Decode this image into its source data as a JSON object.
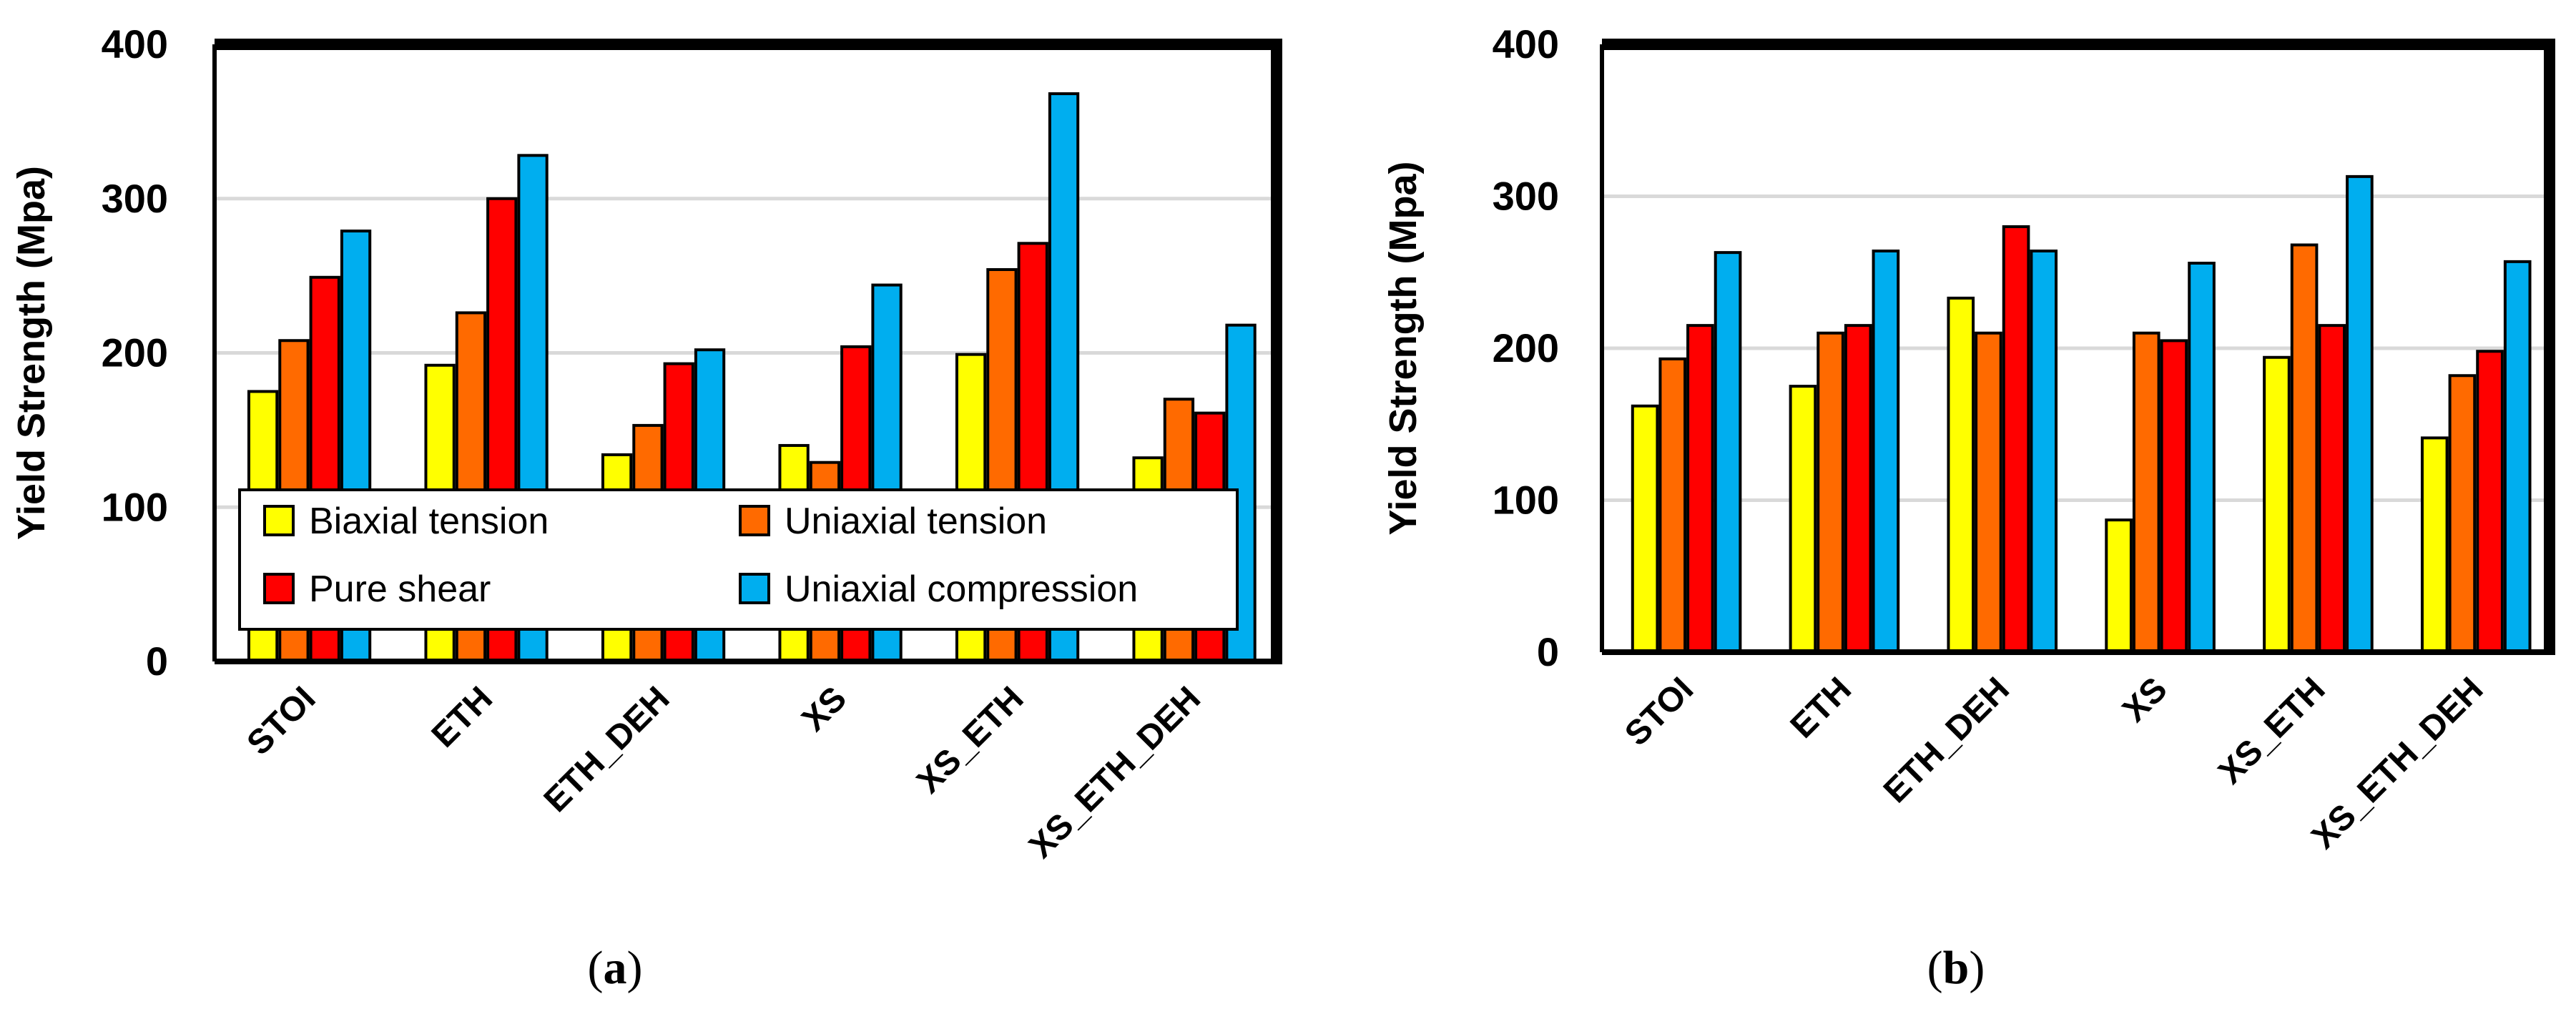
{
  "chart_data": [
    {
      "type": "bar",
      "caption_prefix": "(",
      "caption_letter": "a",
      "caption_suffix": ")",
      "ylabel": "Yield Strength (Mpa)",
      "xlabel": "",
      "ylim": [
        0,
        400
      ],
      "yticks": [
        "0",
        "100",
        "200",
        "300",
        "400"
      ],
      "grid": true,
      "legend": "inside-bottom",
      "categories": [
        "STOI",
        "ETH",
        "ETH_DEH",
        "XS",
        "XS_ETH",
        "XS_ETH_DEH"
      ],
      "series": [
        {
          "name": "Biaxial tension",
          "color": "#FFFF00",
          "values": [
            175,
            192,
            134,
            140,
            199,
            132
          ]
        },
        {
          "name": "Uniaxial tension",
          "color": "#FF6A00",
          "values": [
            208,
            226,
            153,
            129,
            254,
            170
          ]
        },
        {
          "name": "Pure shear",
          "color": "#FF0000",
          "values": [
            249,
            300,
            193,
            204,
            271,
            161
          ]
        },
        {
          "name": "Uniaxial compression",
          "color": "#00AEEF",
          "values": [
            279,
            328,
            202,
            244,
            368,
            218
          ]
        }
      ]
    },
    {
      "type": "bar",
      "caption_prefix": "(",
      "caption_letter": "b",
      "caption_suffix": ")",
      "ylabel": "Yield Strength (Mpa)",
      "xlabel": "",
      "ylim": [
        0,
        400
      ],
      "yticks": [
        "0",
        "100",
        "200",
        "300",
        "400"
      ],
      "grid": true,
      "legend": "none",
      "categories": [
        "STOI",
        "ETH",
        "ETH_DEH",
        "XS",
        "XS_ETH",
        "XS_ETH_DEH"
      ],
      "series": [
        {
          "name": "Biaxial tension",
          "color": "#FFFF00",
          "values": [
            162,
            175,
            233,
            87,
            194,
            141
          ]
        },
        {
          "name": "Uniaxial tension",
          "color": "#FF6A00",
          "values": [
            193,
            210,
            210,
            210,
            268,
            182
          ]
        },
        {
          "name": "Pure shear",
          "color": "#FF0000",
          "values": [
            215,
            215,
            280,
            205,
            215,
            198
          ]
        },
        {
          "name": "Uniaxial compression",
          "color": "#00AEEF",
          "values": [
            263,
            264,
            264,
            256,
            313,
            257
          ]
        }
      ]
    }
  ]
}
